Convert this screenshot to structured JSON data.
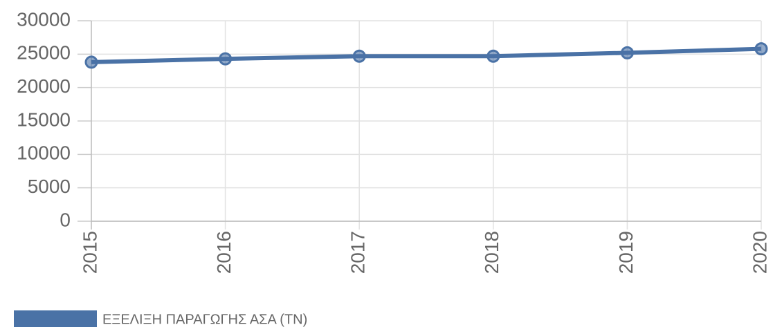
{
  "chart_data": {
    "type": "line",
    "categories": [
      "2015",
      "2016",
      "2017",
      "2018",
      "2019",
      "2020"
    ],
    "series": [
      {
        "name": "ΕΞΕΛΙΞΗ ΠΑΡΑΓΩΓΗΣ ΑΣΑ (ΤΝ)",
        "color": "#4a72a6",
        "values": [
          23800,
          24300,
          24700,
          24700,
          25200,
          25800
        ]
      }
    ],
    "ylim": [
      0,
      30000
    ],
    "yticks": [
      0,
      5000,
      10000,
      15000,
      20000,
      25000,
      30000
    ],
    "grid": true,
    "legend": "bottom-left"
  }
}
